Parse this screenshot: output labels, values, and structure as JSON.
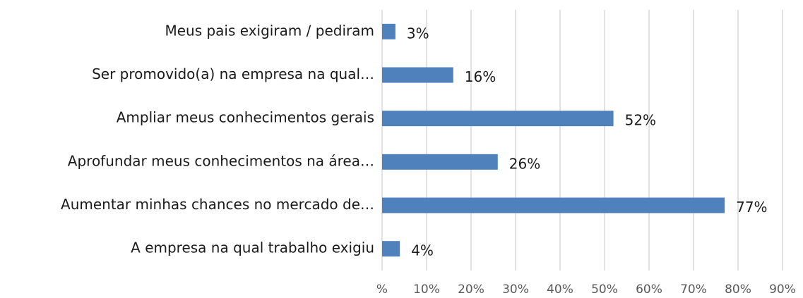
{
  "chart_data": {
    "type": "barh",
    "categories": [
      "Meus pais exigiram / pediram",
      "Ser promovido(a) na empresa na qual…",
      "Ampliar meus conhecimentos gerais",
      "Aprofundar meus conhecimentos na área…",
      "Aumentar minhas chances no mercado de…",
      "A empresa na qual trabalho exigiu"
    ],
    "values": [
      3,
      16,
      52,
      26,
      77,
      4
    ],
    "value_labels": [
      "3%",
      "16%",
      "52%",
      "26%",
      "77%",
      "4%"
    ],
    "color": "#4f81bd",
    "xlim": [
      0,
      90
    ],
    "xticks": [
      {
        "value": 0,
        "label": "%"
      },
      {
        "value": 10,
        "label": "10%"
      },
      {
        "value": 20,
        "label": "20%"
      },
      {
        "value": 30,
        "label": "30%"
      },
      {
        "value": 40,
        "label": "40%"
      },
      {
        "value": 50,
        "label": "50%"
      },
      {
        "value": 60,
        "label": "60%"
      },
      {
        "value": 70,
        "label": "70%"
      },
      {
        "value": 80,
        "label": "80%"
      },
      {
        "value": 90,
        "label": "90%"
      }
    ],
    "grid": true
  }
}
